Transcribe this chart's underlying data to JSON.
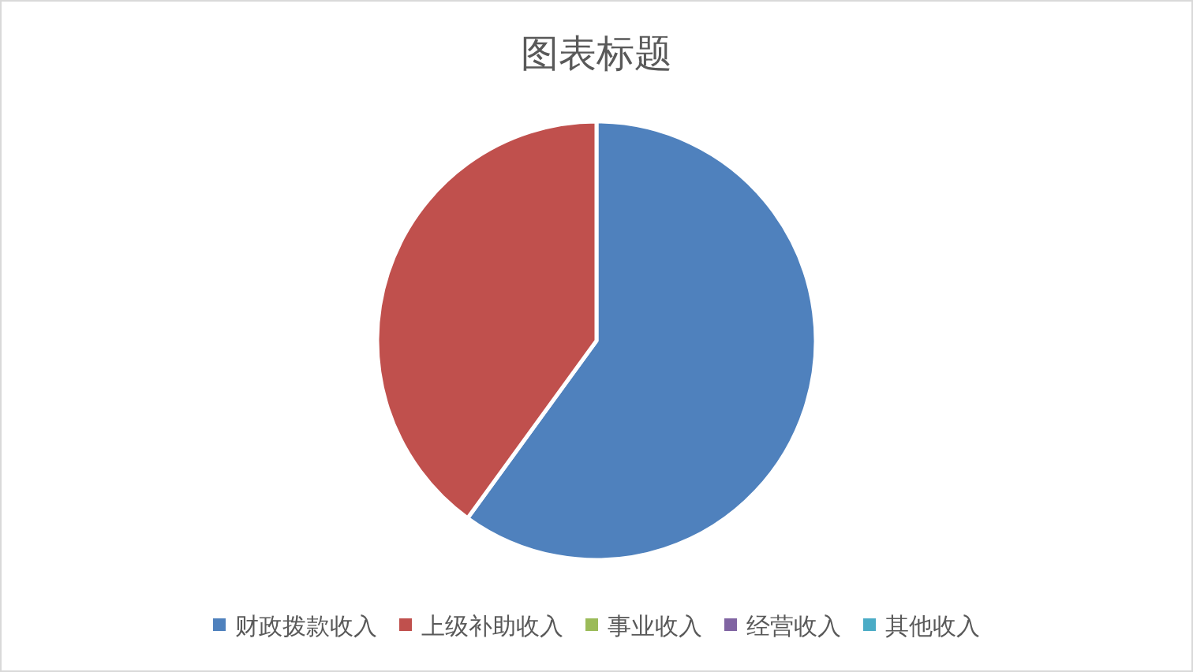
{
  "chart_data": {
    "type": "pie",
    "title": "图表标题",
    "categories": [
      "财政拨款收入",
      "上级补助收入",
      "事业收入",
      "经营收入",
      "其他收入"
    ],
    "values": [
      60,
      40,
      0,
      0,
      0
    ],
    "colors": [
      "#4f81bd",
      "#c0504d",
      "#9bbb59",
      "#8064a2",
      "#4bacc6"
    ],
    "legend": "bottom"
  }
}
